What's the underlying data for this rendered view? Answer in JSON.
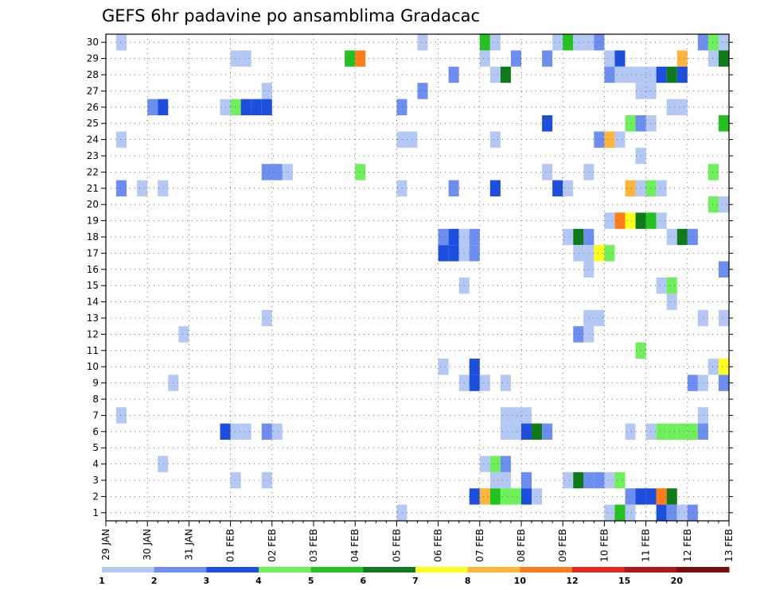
{
  "chart_data": {
    "type": "heatmap",
    "title": "GEFS 6hr padavine po ansamblima Gradacac",
    "xlabel": "",
    "ylabel": "",
    "x_range_days": [
      0,
      15
    ],
    "y_range": [
      0.5,
      30.5
    ],
    "y_ticks": [
      1,
      2,
      3,
      4,
      5,
      6,
      7,
      8,
      9,
      10,
      11,
      12,
      13,
      14,
      15,
      16,
      17,
      18,
      19,
      20,
      21,
      22,
      23,
      24,
      25,
      26,
      27,
      28,
      29,
      30
    ],
    "x_ticks": [
      {
        "day": 0,
        "label": "29 JAN"
      },
      {
        "day": 1,
        "label": "30 JAN"
      },
      {
        "day": 2,
        "label": "31 JAN"
      },
      {
        "day": 3,
        "label": "01 FEB"
      },
      {
        "day": 4,
        "label": "02 FEB"
      },
      {
        "day": 5,
        "label": "03 FEB"
      },
      {
        "day": 6,
        "label": "04 FEB"
      },
      {
        "day": 7,
        "label": "05 FEB"
      },
      {
        "day": 8,
        "label": "06 FEB"
      },
      {
        "day": 9,
        "label": "07 FEB"
      },
      {
        "day": 10,
        "label": "08 FEB"
      },
      {
        "day": 11,
        "label": "09 FEB"
      },
      {
        "day": 12,
        "label": "10 FEB"
      },
      {
        "day": 13,
        "label": "11 FEB"
      },
      {
        "day": 14,
        "label": "12 FEB"
      },
      {
        "day": 15,
        "label": "13 FEB"
      }
    ],
    "grid": true,
    "legend": {
      "placement": "bottom",
      "boundaries": [
        "1",
        "2",
        "3",
        "4",
        "5",
        "6",
        "7",
        "8",
        "10",
        "12",
        "15",
        "20"
      ],
      "colors": [
        "#b4c8f5",
        "#6b8ef0",
        "#1c4ee0",
        "#6ef05a",
        "#22c31e",
        "#0e7a19",
        "#ffff1e",
        "#ffb43a",
        "#ff7d19",
        "#e8281c",
        "#b01414",
        "#7a0d0d"
      ]
    },
    "cells": [
      {
        "day": 0.25,
        "m": 30,
        "c": 0
      },
      {
        "day": 7.5,
        "m": 30,
        "c": 0
      },
      {
        "day": 9.0,
        "m": 30,
        "c": 4
      },
      {
        "day": 9.25,
        "m": 30,
        "c": 0
      },
      {
        "day": 10.75,
        "m": 30,
        "c": 0
      },
      {
        "day": 11.0,
        "m": 30,
        "c": 4
      },
      {
        "day": 11.25,
        "m": 30,
        "c": 0
      },
      {
        "day": 11.5,
        "m": 30,
        "c": 0
      },
      {
        "day": 11.75,
        "m": 30,
        "c": 1
      },
      {
        "day": 14.25,
        "m": 30,
        "c": 1
      },
      {
        "day": 14.5,
        "m": 30,
        "c": 3
      },
      {
        "day": 14.75,
        "m": 30,
        "c": 0
      },
      {
        "day": 3.0,
        "m": 29,
        "c": 0
      },
      {
        "day": 3.25,
        "m": 29,
        "c": 0
      },
      {
        "day": 5.75,
        "m": 29,
        "c": 4
      },
      {
        "day": 6.0,
        "m": 29,
        "c": 8
      },
      {
        "day": 9.0,
        "m": 29,
        "c": 0
      },
      {
        "day": 9.75,
        "m": 29,
        "c": 1
      },
      {
        "day": 10.5,
        "m": 29,
        "c": 1
      },
      {
        "day": 12.0,
        "m": 29,
        "c": 0
      },
      {
        "day": 12.25,
        "m": 29,
        "c": 2
      },
      {
        "day": 13.75,
        "m": 29,
        "c": 7
      },
      {
        "day": 14.5,
        "m": 29,
        "c": 0
      },
      {
        "day": 14.75,
        "m": 29,
        "c": 5
      },
      {
        "day": 8.25,
        "m": 28,
        "c": 1
      },
      {
        "day": 9.25,
        "m": 28,
        "c": 0
      },
      {
        "day": 9.5,
        "m": 28,
        "c": 5
      },
      {
        "day": 12.0,
        "m": 28,
        "c": 1
      },
      {
        "day": 12.25,
        "m": 28,
        "c": 0
      },
      {
        "day": 12.5,
        "m": 28,
        "c": 0
      },
      {
        "day": 12.75,
        "m": 28,
        "c": 0
      },
      {
        "day": 13.0,
        "m": 28,
        "c": 0
      },
      {
        "day": 13.25,
        "m": 28,
        "c": 2
      },
      {
        "day": 13.5,
        "m": 28,
        "c": 5
      },
      {
        "day": 13.75,
        "m": 28,
        "c": 2
      },
      {
        "day": 3.75,
        "m": 27,
        "c": 0
      },
      {
        "day": 7.5,
        "m": 27,
        "c": 1
      },
      {
        "day": 12.75,
        "m": 27,
        "c": 0
      },
      {
        "day": 13.0,
        "m": 27,
        "c": 0
      },
      {
        "day": 1.0,
        "m": 26,
        "c": 1
      },
      {
        "day": 1.25,
        "m": 26,
        "c": 2
      },
      {
        "day": 2.75,
        "m": 26,
        "c": 0
      },
      {
        "day": 3.0,
        "m": 26,
        "c": 3
      },
      {
        "day": 3.25,
        "m": 26,
        "c": 2
      },
      {
        "day": 3.5,
        "m": 26,
        "c": 2
      },
      {
        "day": 3.75,
        "m": 26,
        "c": 2
      },
      {
        "day": 7.0,
        "m": 26,
        "c": 1
      },
      {
        "day": 13.5,
        "m": 26,
        "c": 0
      },
      {
        "day": 13.75,
        "m": 26,
        "c": 0
      },
      {
        "day": 10.5,
        "m": 25,
        "c": 2
      },
      {
        "day": 12.5,
        "m": 25,
        "c": 3
      },
      {
        "day": 12.75,
        "m": 25,
        "c": 1
      },
      {
        "day": 13.0,
        "m": 25,
        "c": 0
      },
      {
        "day": 14.75,
        "m": 25,
        "c": 4
      },
      {
        "day": 0.25,
        "m": 24,
        "c": 0
      },
      {
        "day": 7.0,
        "m": 24,
        "c": 0
      },
      {
        "day": 7.25,
        "m": 24,
        "c": 0
      },
      {
        "day": 9.25,
        "m": 24,
        "c": 0
      },
      {
        "day": 11.75,
        "m": 24,
        "c": 1
      },
      {
        "day": 12.0,
        "m": 24,
        "c": 7
      },
      {
        "day": 12.25,
        "m": 24,
        "c": 0
      },
      {
        "day": 12.75,
        "m": 23,
        "c": 0
      },
      {
        "day": 3.75,
        "m": 22,
        "c": 1
      },
      {
        "day": 4.0,
        "m": 22,
        "c": 1
      },
      {
        "day": 4.25,
        "m": 22,
        "c": 0
      },
      {
        "day": 6.0,
        "m": 22,
        "c": 3
      },
      {
        "day": 10.5,
        "m": 22,
        "c": 0
      },
      {
        "day": 11.5,
        "m": 22,
        "c": 0
      },
      {
        "day": 14.5,
        "m": 22,
        "c": 3
      },
      {
        "day": 0.25,
        "m": 21,
        "c": 1
      },
      {
        "day": 0.75,
        "m": 21,
        "c": 0
      },
      {
        "day": 1.25,
        "m": 21,
        "c": 0
      },
      {
        "day": 7.0,
        "m": 21,
        "c": 0
      },
      {
        "day": 8.25,
        "m": 21,
        "c": 1
      },
      {
        "day": 9.25,
        "m": 21,
        "c": 2
      },
      {
        "day": 10.75,
        "m": 21,
        "c": 2
      },
      {
        "day": 11.0,
        "m": 21,
        "c": 0
      },
      {
        "day": 12.5,
        "m": 21,
        "c": 7
      },
      {
        "day": 12.75,
        "m": 21,
        "c": 0
      },
      {
        "day": 13.0,
        "m": 21,
        "c": 3
      },
      {
        "day": 13.25,
        "m": 21,
        "c": 0
      },
      {
        "day": 14.5,
        "m": 20,
        "c": 3
      },
      {
        "day": 14.75,
        "m": 20,
        "c": 0
      },
      {
        "day": 12.0,
        "m": 19,
        "c": 0
      },
      {
        "day": 12.25,
        "m": 19,
        "c": 8
      },
      {
        "day": 12.5,
        "m": 19,
        "c": 6
      },
      {
        "day": 12.75,
        "m": 19,
        "c": 5
      },
      {
        "day": 13.0,
        "m": 19,
        "c": 4
      },
      {
        "day": 13.25,
        "m": 19,
        "c": 0
      },
      {
        "day": 8.0,
        "m": 18,
        "c": 1
      },
      {
        "day": 8.0,
        "m": 17,
        "c": 2
      },
      {
        "day": 8.25,
        "m": 18,
        "c": 2
      },
      {
        "day": 8.25,
        "m": 17,
        "c": 2
      },
      {
        "day": 8.5,
        "m": 18,
        "c": 0
      },
      {
        "day": 8.5,
        "m": 17,
        "c": 0
      },
      {
        "day": 8.75,
        "m": 18,
        "c": 1
      },
      {
        "day": 8.75,
        "m": 17,
        "c": 1
      },
      {
        "day": 11.0,
        "m": 18,
        "c": 0
      },
      {
        "day": 11.25,
        "m": 18,
        "c": 5
      },
      {
        "day": 11.5,
        "m": 18,
        "c": 1
      },
      {
        "day": 13.5,
        "m": 18,
        "c": 0
      },
      {
        "day": 13.75,
        "m": 18,
        "c": 5
      },
      {
        "day": 14.0,
        "m": 18,
        "c": 1
      },
      {
        "day": 11.25,
        "m": 17,
        "c": 0
      },
      {
        "day": 11.5,
        "m": 17,
        "c": 0
      },
      {
        "day": 11.75,
        "m": 17,
        "c": 6
      },
      {
        "day": 12.0,
        "m": 17,
        "c": 3
      },
      {
        "day": 11.5,
        "m": 16,
        "c": 0
      },
      {
        "day": 14.75,
        "m": 16,
        "c": 1
      },
      {
        "day": 8.5,
        "m": 15,
        "c": 0
      },
      {
        "day": 13.25,
        "m": 15,
        "c": 0
      },
      {
        "day": 13.5,
        "m": 15,
        "c": 3
      },
      {
        "day": 13.5,
        "m": 14,
        "c": 0
      },
      {
        "day": 3.75,
        "m": 13,
        "c": 0
      },
      {
        "day": 11.5,
        "m": 13,
        "c": 0
      },
      {
        "day": 11.75,
        "m": 13,
        "c": 0
      },
      {
        "day": 14.25,
        "m": 13,
        "c": 0
      },
      {
        "day": 14.75,
        "m": 13,
        "c": 0
      },
      {
        "day": 1.75,
        "m": 12,
        "c": 0
      },
      {
        "day": 11.25,
        "m": 12,
        "c": 1
      },
      {
        "day": 11.5,
        "m": 12,
        "c": 0
      },
      {
        "day": 12.75,
        "m": 11,
        "c": 3
      },
      {
        "day": 8.0,
        "m": 10,
        "c": 0
      },
      {
        "day": 8.75,
        "m": 10,
        "c": 2
      },
      {
        "day": 14.5,
        "m": 10,
        "c": 0
      },
      {
        "day": 14.75,
        "m": 10,
        "c": 6
      },
      {
        "day": 1.5,
        "m": 9,
        "c": 0
      },
      {
        "day": 8.5,
        "m": 9,
        "c": 0
      },
      {
        "day": 8.75,
        "m": 9,
        "c": 2
      },
      {
        "day": 9.0,
        "m": 9,
        "c": 0
      },
      {
        "day": 9.5,
        "m": 9,
        "c": 0
      },
      {
        "day": 14.0,
        "m": 9,
        "c": 1
      },
      {
        "day": 14.25,
        "m": 9,
        "c": 0
      },
      {
        "day": 14.75,
        "m": 9,
        "c": 1
      },
      {
        "day": 0.25,
        "m": 7,
        "c": 0
      },
      {
        "day": 9.5,
        "m": 7,
        "c": 0
      },
      {
        "day": 9.75,
        "m": 7,
        "c": 0
      },
      {
        "day": 10.0,
        "m": 7,
        "c": 0
      },
      {
        "day": 14.25,
        "m": 7,
        "c": 0
      },
      {
        "day": 2.75,
        "m": 6,
        "c": 2
      },
      {
        "day": 3.0,
        "m": 6,
        "c": 0
      },
      {
        "day": 3.25,
        "m": 6,
        "c": 0
      },
      {
        "day": 3.75,
        "m": 6,
        "c": 1
      },
      {
        "day": 4.0,
        "m": 6,
        "c": 0
      },
      {
        "day": 9.5,
        "m": 6,
        "c": 0
      },
      {
        "day": 9.75,
        "m": 6,
        "c": 0
      },
      {
        "day": 10.0,
        "m": 6,
        "c": 2
      },
      {
        "day": 10.25,
        "m": 6,
        "c": 5
      },
      {
        "day": 10.5,
        "m": 6,
        "c": 1
      },
      {
        "day": 12.5,
        "m": 6,
        "c": 0
      },
      {
        "day": 13.0,
        "m": 6,
        "c": 0
      },
      {
        "day": 13.25,
        "m": 6,
        "c": 3
      },
      {
        "day": 13.5,
        "m": 6,
        "c": 3
      },
      {
        "day": 13.75,
        "m": 6,
        "c": 3
      },
      {
        "day": 14.0,
        "m": 6,
        "c": 3
      },
      {
        "day": 14.25,
        "m": 6,
        "c": 1
      },
      {
        "day": 1.25,
        "m": 4,
        "c": 0
      },
      {
        "day": 9.0,
        "m": 4,
        "c": 0
      },
      {
        "day": 9.25,
        "m": 4,
        "c": 3
      },
      {
        "day": 9.5,
        "m": 4,
        "c": 1
      },
      {
        "day": 3.0,
        "m": 3,
        "c": 0
      },
      {
        "day": 3.75,
        "m": 3,
        "c": 0
      },
      {
        "day": 9.25,
        "m": 3,
        "c": 0
      },
      {
        "day": 9.5,
        "m": 3,
        "c": 0
      },
      {
        "day": 10.0,
        "m": 3,
        "c": 1
      },
      {
        "day": 11.0,
        "m": 3,
        "c": 0
      },
      {
        "day": 11.25,
        "m": 3,
        "c": 5
      },
      {
        "day": 11.5,
        "m": 3,
        "c": 1
      },
      {
        "day": 11.75,
        "m": 3,
        "c": 1
      },
      {
        "day": 12.0,
        "m": 3,
        "c": 0
      },
      {
        "day": 12.25,
        "m": 3,
        "c": 3
      },
      {
        "day": 8.75,
        "m": 2,
        "c": 2
      },
      {
        "day": 9.0,
        "m": 2,
        "c": 7
      },
      {
        "day": 9.25,
        "m": 2,
        "c": 4
      },
      {
        "day": 9.5,
        "m": 2,
        "c": 3
      },
      {
        "day": 9.75,
        "m": 2,
        "c": 3
      },
      {
        "day": 10.0,
        "m": 2,
        "c": 2
      },
      {
        "day": 10.25,
        "m": 2,
        "c": 0
      },
      {
        "day": 12.5,
        "m": 2,
        "c": 1
      },
      {
        "day": 12.75,
        "m": 2,
        "c": 2
      },
      {
        "day": 13.0,
        "m": 2,
        "c": 2
      },
      {
        "day": 13.25,
        "m": 2,
        "c": 8
      },
      {
        "day": 13.5,
        "m": 2,
        "c": 5
      },
      {
        "day": 7.0,
        "m": 1,
        "c": 0
      },
      {
        "day": 12.0,
        "m": 1,
        "c": 0
      },
      {
        "day": 12.25,
        "m": 1,
        "c": 4
      },
      {
        "day": 12.5,
        "m": 1,
        "c": 0
      },
      {
        "day": 13.25,
        "m": 1,
        "c": 2
      },
      {
        "day": 13.5,
        "m": 1,
        "c": 1
      },
      {
        "day": 13.75,
        "m": 1,
        "c": 0
      },
      {
        "day": 14.0,
        "m": 1,
        "c": 1
      }
    ]
  }
}
